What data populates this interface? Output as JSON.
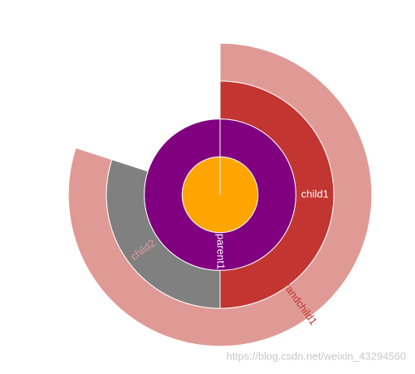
{
  "chart_data": {
    "type": "sunburst",
    "rings": [
      [
        {
          "value": 10,
          "color": "#ffa500"
        }
      ],
      [
        {
          "name": "parent1",
          "value": 10,
          "color": "#800080",
          "label_color": "#ffffff"
        }
      ],
      [
        {
          "name": "child1",
          "value": 5,
          "color": "#c23531",
          "label_color": "#ffffff"
        },
        {
          "name": "child2",
          "value": 3,
          "color": "#808080",
          "label_color": "#e09a96"
        }
      ],
      [
        {
          "name": "grandchild1",
          "value": 8,
          "color": "#e09a96",
          "label_color": "#c23531"
        }
      ]
    ],
    "watermark": "https://blog.csdn.net/weixin_43294560"
  }
}
